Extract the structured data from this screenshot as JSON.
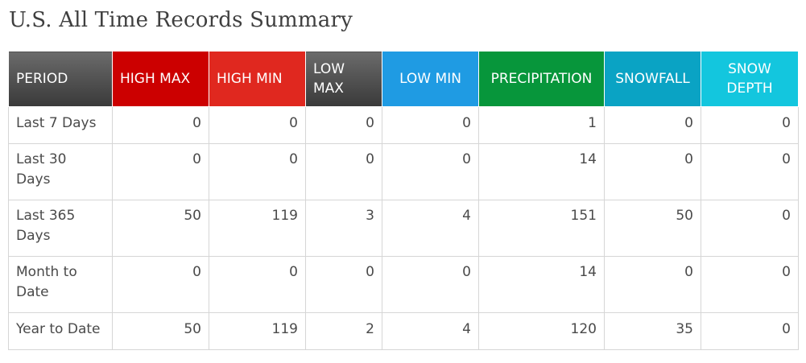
{
  "title": "U.S. All Time Records Summary",
  "colors": {
    "period_header": "#484848",
    "high_max": "#cc0000",
    "high_min": "#e0281f",
    "low_max": "#484848",
    "low_min": "#1f9be3",
    "precipitation": "#07963b",
    "snowfall": "#0aa3c4",
    "snow_depth": "#13c6de"
  },
  "headers": {
    "period": "PERIOD",
    "high_max": "HIGH MAX",
    "high_min": "HIGH MIN",
    "low_max": "LOW MAX",
    "low_min": "LOW MIN",
    "precipitation": "PRECIPITATION",
    "snowfall": "SNOWFALL",
    "snow_depth": "SNOW DEPTH"
  },
  "rows": [
    {
      "period": "Last 7 Days",
      "high_max": "0",
      "high_min": "0",
      "low_max": "0",
      "low_min": "0",
      "precipitation": "1",
      "snowfall": "0",
      "snow_depth": "0"
    },
    {
      "period": "Last 30 Days",
      "high_max": "0",
      "high_min": "0",
      "low_max": "0",
      "low_min": "0",
      "precipitation": "14",
      "snowfall": "0",
      "snow_depth": "0"
    },
    {
      "period": "Last 365 Days",
      "high_max": "50",
      "high_min": "119",
      "low_max": "3",
      "low_min": "4",
      "precipitation": "151",
      "snowfall": "50",
      "snow_depth": "0"
    },
    {
      "period": "Month to Date",
      "high_max": "0",
      "high_min": "0",
      "low_max": "0",
      "low_min": "0",
      "precipitation": "14",
      "snowfall": "0",
      "snow_depth": "0"
    },
    {
      "period": "Year to Date",
      "high_max": "50",
      "high_min": "119",
      "low_max": "2",
      "low_min": "4",
      "precipitation": "120",
      "snowfall": "35",
      "snow_depth": "0"
    }
  ]
}
